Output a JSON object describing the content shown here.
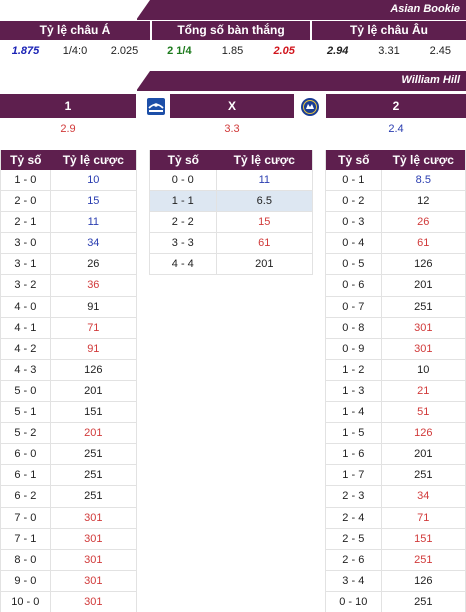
{
  "asian_banner": "Asian Bookie",
  "top_odds": {
    "asian": {
      "header": "Tỷ lệ châu Á",
      "values": [
        "1.875",
        "1/4:0",
        "2.025"
      ]
    },
    "total": {
      "header": "Tổng số bàn thắng",
      "values": [
        "2 1/4",
        "1.85",
        "2.05"
      ]
    },
    "euro": {
      "header": "Tỷ lệ châu Âu",
      "values": [
        "2.94",
        "3.31",
        "2.45"
      ]
    }
  },
  "wh_banner": "William Hill",
  "wh": {
    "home_label": "1",
    "draw_label": "X",
    "away_label": "2",
    "home_odds": "2.9",
    "draw_odds": "3.3",
    "away_odds": "2.4",
    "home_logo": "birmingham-crest-icon",
    "away_logo": "chelsea-crest-icon"
  },
  "table_headers": {
    "score": "Tỷ số",
    "odds": "Tỷ lệ cược"
  },
  "home_table": [
    {
      "score": "1 - 0",
      "odds": "10",
      "color": "#2a3db0"
    },
    {
      "score": "2 - 0",
      "odds": "15",
      "color": "#2a3db0"
    },
    {
      "score": "2 - 1",
      "odds": "11",
      "color": "#2a3db0"
    },
    {
      "score": "3 - 0",
      "odds": "34",
      "color": "#2a3db0"
    },
    {
      "score": "3 - 1",
      "odds": "26",
      "color": "#222222"
    },
    {
      "score": "3 - 2",
      "odds": "36",
      "color": "#d13a3a"
    },
    {
      "score": "4 - 0",
      "odds": "91",
      "color": "#222222"
    },
    {
      "score": "4 - 1",
      "odds": "71",
      "color": "#d13a3a"
    },
    {
      "score": "4 - 2",
      "odds": "91",
      "color": "#d13a3a"
    },
    {
      "score": "4 - 3",
      "odds": "126",
      "color": "#222222"
    },
    {
      "score": "5 - 0",
      "odds": "201",
      "color": "#222222"
    },
    {
      "score": "5 - 1",
      "odds": "151",
      "color": "#222222"
    },
    {
      "score": "5 - 2",
      "odds": "201",
      "color": "#d13a3a"
    },
    {
      "score": "6 - 0",
      "odds": "251",
      "color": "#222222"
    },
    {
      "score": "6 - 1",
      "odds": "251",
      "color": "#222222"
    },
    {
      "score": "6 - 2",
      "odds": "251",
      "color": "#222222"
    },
    {
      "score": "7 - 0",
      "odds": "301",
      "color": "#d13a3a"
    },
    {
      "score": "7 - 1",
      "odds": "301",
      "color": "#d13a3a"
    },
    {
      "score": "8 - 0",
      "odds": "301",
      "color": "#d13a3a"
    },
    {
      "score": "9 - 0",
      "odds": "301",
      "color": "#d13a3a"
    },
    {
      "score": "10 - 0",
      "odds": "301",
      "color": "#d13a3a"
    }
  ],
  "draw_table": [
    {
      "score": "0 - 0",
      "odds": "11",
      "color": "#2a3db0"
    },
    {
      "score": "1 - 1",
      "odds": "6.5",
      "color": "#222222"
    },
    {
      "score": "2 - 2",
      "odds": "15",
      "color": "#d13a3a"
    },
    {
      "score": "3 - 3",
      "odds": "61",
      "color": "#d13a3a"
    },
    {
      "score": "4 - 4",
      "odds": "201",
      "color": "#222222"
    }
  ],
  "away_table": [
    {
      "score": "0 - 1",
      "odds": "8.5",
      "color": "#2a3db0"
    },
    {
      "score": "0 - 2",
      "odds": "12",
      "color": "#222222"
    },
    {
      "score": "0 - 3",
      "odds": "26",
      "color": "#d13a3a"
    },
    {
      "score": "0 - 4",
      "odds": "61",
      "color": "#d13a3a"
    },
    {
      "score": "0 - 5",
      "odds": "126",
      "color": "#222222"
    },
    {
      "score": "0 - 6",
      "odds": "201",
      "color": "#222222"
    },
    {
      "score": "0 - 7",
      "odds": "251",
      "color": "#222222"
    },
    {
      "score": "0 - 8",
      "odds": "301",
      "color": "#d13a3a"
    },
    {
      "score": "0 - 9",
      "odds": "301",
      "color": "#d13a3a"
    },
    {
      "score": "1 - 2",
      "odds": "10",
      "color": "#222222"
    },
    {
      "score": "1 - 3",
      "odds": "21",
      "color": "#d13a3a"
    },
    {
      "score": "1 - 4",
      "odds": "51",
      "color": "#d13a3a"
    },
    {
      "score": "1 - 5",
      "odds": "126",
      "color": "#d13a3a"
    },
    {
      "score": "1 - 6",
      "odds": "201",
      "color": "#222222"
    },
    {
      "score": "1 - 7",
      "odds": "251",
      "color": "#222222"
    },
    {
      "score": "2 - 3",
      "odds": "34",
      "color": "#d13a3a"
    },
    {
      "score": "2 - 4",
      "odds": "71",
      "color": "#d13a3a"
    },
    {
      "score": "2 - 5",
      "odds": "151",
      "color": "#d13a3a"
    },
    {
      "score": "2 - 6",
      "odds": "251",
      "color": "#d13a3a"
    },
    {
      "score": "3 - 4",
      "odds": "126",
      "color": "#222222"
    },
    {
      "score": "0 - 10",
      "odds": "251",
      "color": "#222222"
    }
  ]
}
